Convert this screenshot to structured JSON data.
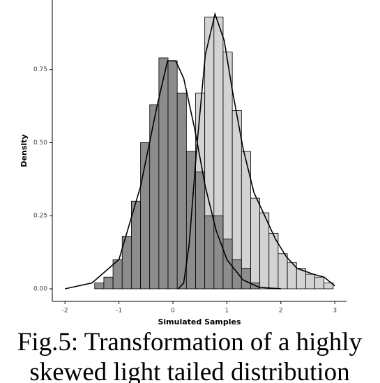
{
  "chart_data": {
    "type": "histogram",
    "xlabel": "Simulated Samples",
    "ylabel": "Density",
    "caption": [
      "Fig.5: Transformation of a highly",
      "skewed light tailed distribution"
    ],
    "bins": [
      -1.45,
      -1.28,
      -1.11,
      -0.94,
      -0.77,
      -0.6,
      -0.43,
      -0.26,
      -0.09,
      0.08,
      0.25,
      0.42,
      0.59,
      0.76,
      0.93,
      1.1,
      1.27,
      1.44,
      1.61,
      1.78,
      1.95,
      2.12,
      2.29,
      2.46,
      2.63,
      2.8,
      2.97
    ],
    "series": [
      {
        "color": "#d3d3d3",
        "values": [
          0,
          0,
          0,
          0,
          0,
          0,
          0,
          0,
          0,
          0.03,
          0.3,
          0.67,
          0.93,
          0.93,
          0.81,
          0.61,
          0.47,
          0.31,
          0.26,
          0.19,
          0.12,
          0.09,
          0.07,
          0.05,
          0.04,
          0.02
        ]
      },
      {
        "color": "#8c8c8c",
        "values": [
          0.02,
          0.04,
          0.1,
          0.18,
          0.3,
          0.5,
          0.63,
          0.79,
          0.78,
          0.67,
          0.47,
          0.4,
          0.25,
          0.25,
          0.17,
          0.1,
          0.07,
          0.02,
          0,
          0,
          0,
          0,
          0,
          0,
          0,
          0
        ]
      }
    ],
    "curves": [
      {
        "color": "#000000",
        "x": [
          -2,
          -1.5,
          -1,
          -0.6,
          -0.3,
          -0.1,
          0.05,
          0.2,
          0.4,
          0.6,
          0.8,
          1.0,
          1.3,
          1.6,
          2
        ],
        "values": [
          0,
          0.02,
          0.1,
          0.35,
          0.62,
          0.78,
          0.78,
          0.72,
          0.55,
          0.35,
          0.2,
          0.1,
          0.03,
          0.005,
          0
        ]
      },
      {
        "color": "#000000",
        "x": [
          0.1,
          0.2,
          0.3,
          0.45,
          0.6,
          0.78,
          0.95,
          1.1,
          1.3,
          1.5,
          1.7,
          1.9,
          2.1,
          2.3,
          2.6,
          2.8,
          3.0
        ],
        "values": [
          0,
          0.02,
          0.15,
          0.5,
          0.8,
          0.94,
          0.85,
          0.68,
          0.48,
          0.33,
          0.25,
          0.17,
          0.11,
          0.07,
          0.05,
          0.04,
          0.01
        ]
      }
    ],
    "xlim": [
      -2.235,
      3.217
    ],
    "ylim": [
      -0.043,
      0.988
    ],
    "xticks": [
      -2,
      -1,
      0,
      1,
      2,
      3
    ],
    "yticks": [
      {
        "value": 0,
        "label": "0.00"
      },
      {
        "value": 0.25,
        "label": "0.25"
      },
      {
        "value": 0.5,
        "label": "0.50"
      },
      {
        "value": 0.75,
        "label": "0.75"
      }
    ]
  }
}
